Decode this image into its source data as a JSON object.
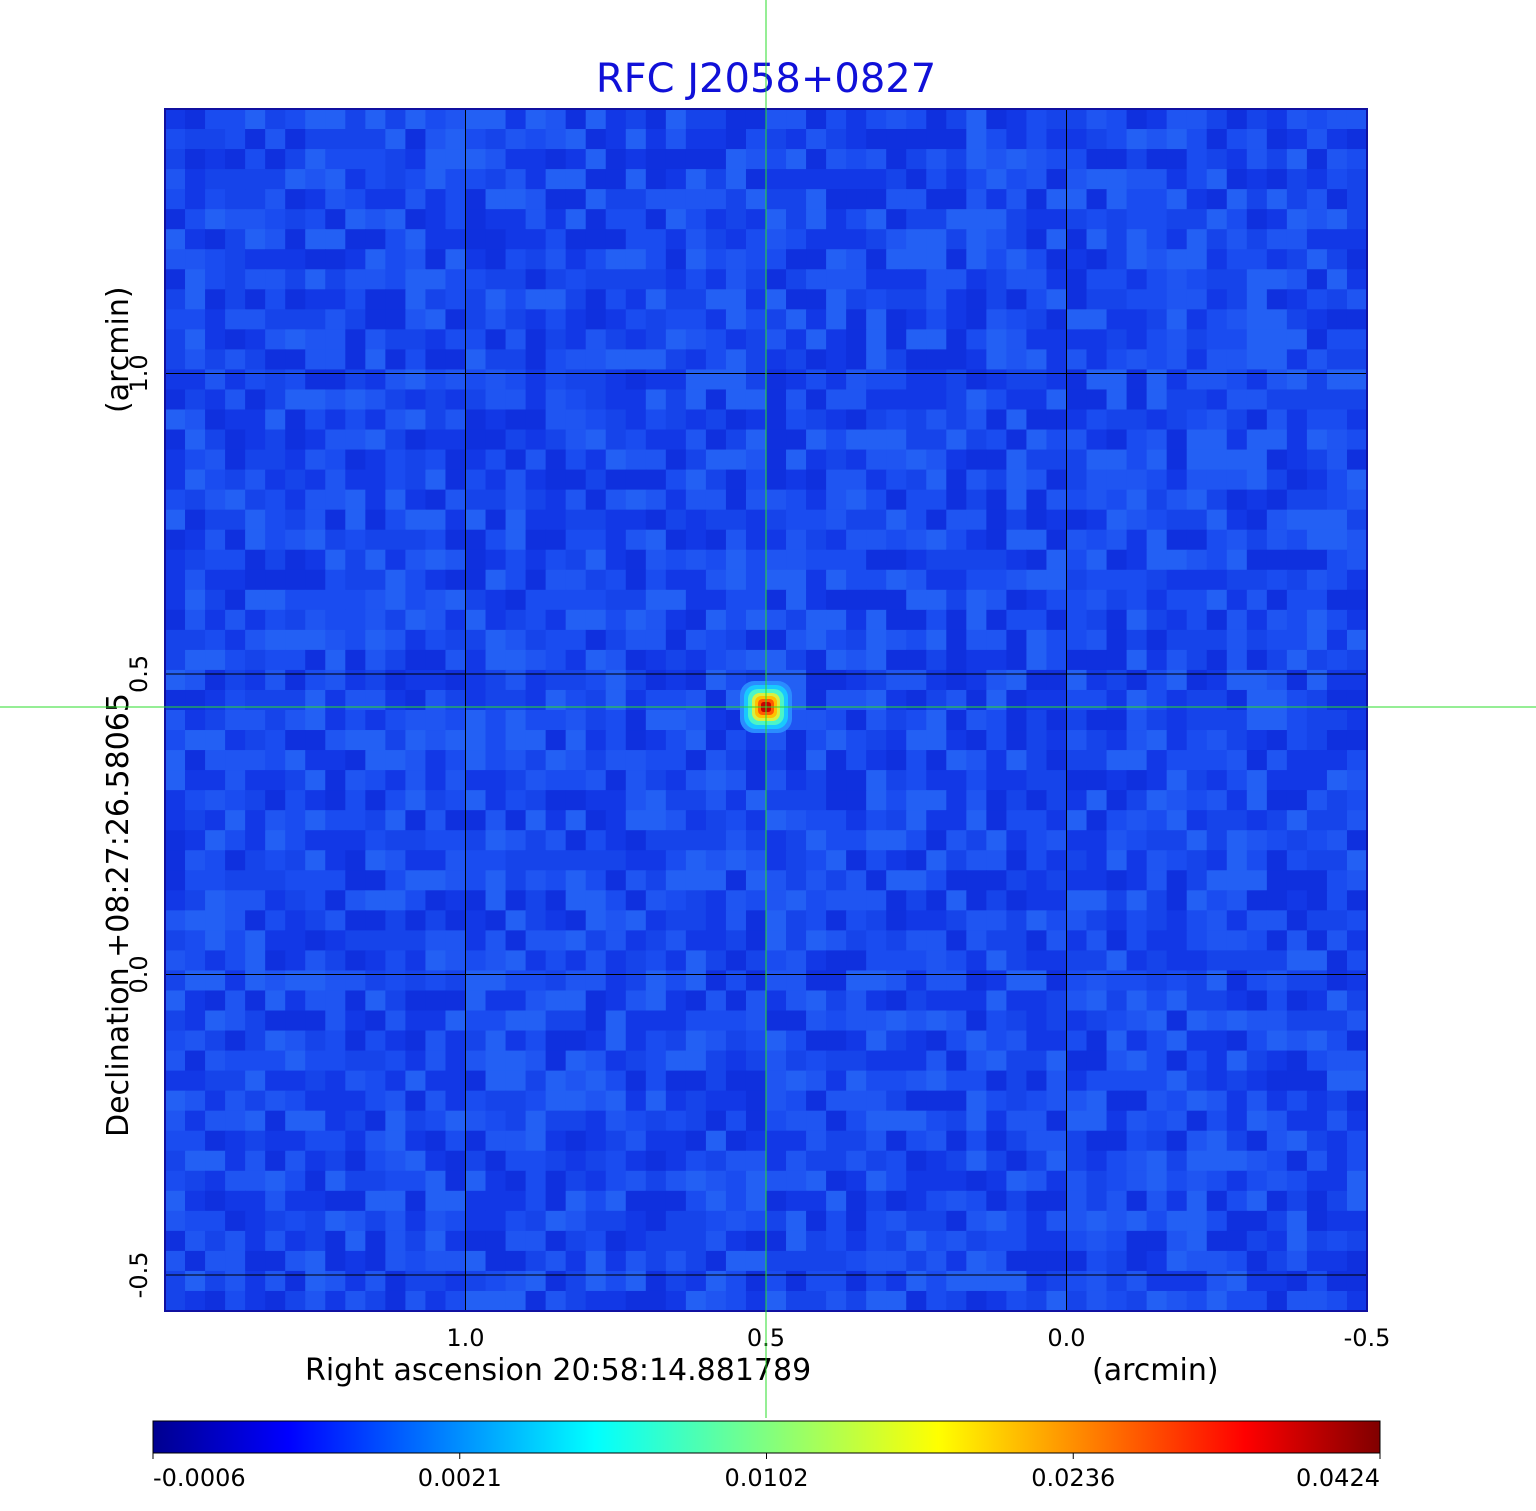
{
  "chart_data": {
    "type": "heatmap",
    "title": "RFC J2058+0827",
    "xlabel": "Right ascension  20:58:14.881789",
    "xunit": "(arcmin)",
    "ylabel": "Declination  +08:27:26.58065",
    "yunit": "(arcmin)",
    "xlim": [
      1.5,
      -0.5
    ],
    "ylim": [
      -0.56,
      1.44
    ],
    "x_ticks": [
      "1.0",
      "0.5",
      "0.0",
      "-0.5"
    ],
    "x_tick_values": [
      1.0,
      0.5,
      0.0,
      -0.5
    ],
    "y_ticks": [
      "-0.5",
      "0.0",
      "0.5",
      "1.0"
    ],
    "y_tick_values": [
      -0.5,
      0.0,
      0.5,
      1.0
    ],
    "grid": true,
    "crosshair": {
      "x": 0.5,
      "y": 0.445
    },
    "source": {
      "x": 0.5,
      "y": 0.445,
      "peak": 0.0424
    },
    "colormap": "jet",
    "colorbar_ticks": [
      "-0.0006",
      "0.0021",
      "0.0102",
      "0.0236",
      "0.0424"
    ],
    "colorbar_range": [
      -0.0006,
      0.0424
    ]
  },
  "colors": {
    "title": "#1010d8",
    "crosshair": "#2bdc2b",
    "grid": "#000000",
    "background_field": "#1a4cf0"
  }
}
